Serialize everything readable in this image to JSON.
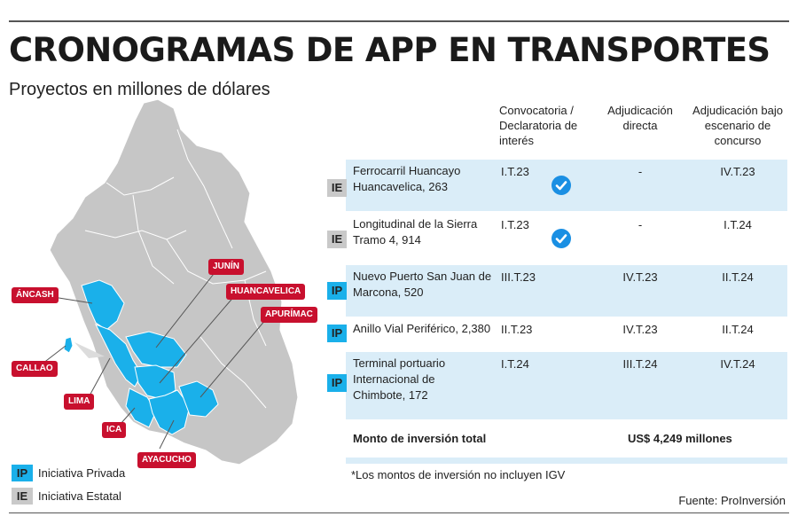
{
  "header": {
    "title": "CRONOGRAMAS DE APP EN TRANSPORTES",
    "subtitle": "Proyectos en millones de dólares"
  },
  "colors": {
    "ip_blue": "#1ab0ea",
    "ie_gray": "#c9c9c9",
    "row_fill": "#daedf8",
    "label_red": "#c8102e",
    "map_gray": "#c6c6c6",
    "check_blue": "#1a8fe3"
  },
  "map": {
    "labels": [
      "ÁNCASH",
      "CALLAO",
      "LIMA",
      "ICA",
      "AYACUCHO",
      "JUNÍN",
      "HUANCAVELICA",
      "APURÍMAC"
    ]
  },
  "legend": [
    {
      "code": "IP",
      "label": "Iniciativa Privada"
    },
    {
      "code": "IE",
      "label": "Iniciativa Estatal"
    }
  ],
  "table": {
    "columns": [
      "Convocatoria / Declaratoria de interés",
      "Adjudicación directa",
      "Adjudicación bajo escenario de concurso"
    ],
    "rows": [
      {
        "type": "IE",
        "name": "Ferrocarril Huancayo Huancavelica, 263",
        "convocatoria": "I.T.23",
        "checked": true,
        "directa": "-",
        "concurso": "IV.T.23"
      },
      {
        "type": "IE",
        "name": "Longitudinal de la Sierra Tramo 4, 914",
        "convocatoria": "I.T.23",
        "checked": true,
        "directa": "-",
        "concurso": "I.T.24"
      },
      {
        "type": "IP",
        "name": "Nuevo Puerto San Juan de Marcona, 520",
        "convocatoria": "III.T.23",
        "checked": false,
        "directa": "IV.T.23",
        "concurso": "II.T.24"
      },
      {
        "type": "IP",
        "name": "Anillo Vial Periférico, 2,380",
        "convocatoria": "II.T.23",
        "checked": false,
        "directa": "IV.T.23",
        "concurso": "II.T.24"
      },
      {
        "type": "IP",
        "name": "Terminal portuario Internacional de Chimbote, 172",
        "convocatoria": "I.T.24",
        "checked": false,
        "directa": "III.T.24",
        "concurso": "IV.T.24"
      }
    ],
    "total_label": "Monto de inversión total",
    "total_value": "US$ 4,249 millones"
  },
  "footer": {
    "note": "*Los montos de inversión no incluyen IGV",
    "source": "Fuente: ProInversión"
  }
}
